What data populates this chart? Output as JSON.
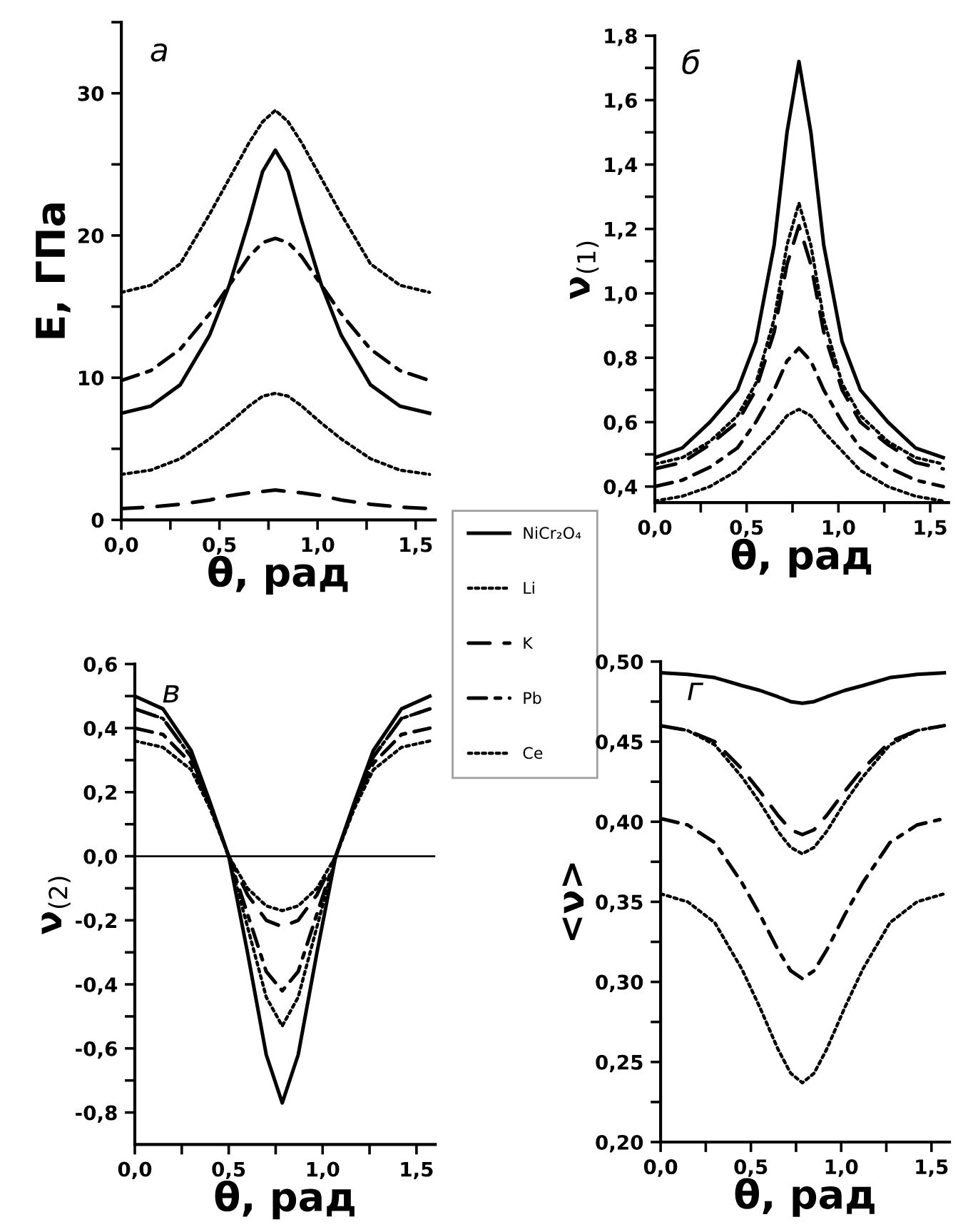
{
  "chart_data": [
    {
      "type": "line",
      "annotations": [
        "а"
      ],
      "xlabel": "θ, рад",
      "ylabel": "E, ГПа",
      "legend": "right",
      "x": [
        0,
        0.15,
        0.3,
        0.45,
        0.55,
        0.65,
        0.72,
        0.785,
        0.85,
        0.92,
        1.02,
        1.12,
        1.27,
        1.42,
        1.571
      ],
      "xlim": [
        0,
        1.6
      ],
      "xticks": [
        {
          "value": 0,
          "label": "0,0"
        },
        {
          "value": 0.25,
          "label": null
        },
        {
          "value": 0.5,
          "label": "0,5"
        },
        {
          "value": 0.75,
          "label": null
        },
        {
          "value": 1.0,
          "label": "1,0"
        },
        {
          "value": 1.25,
          "label": null
        },
        {
          "value": 1.5,
          "label": "1,5"
        }
      ],
      "ylim": [
        0,
        35
      ],
      "yticks": [
        0,
        {
          "value": 5,
          "label": null
        },
        10,
        {
          "value": 15,
          "label": null
        },
        20,
        {
          "value": 25,
          "label": null
        },
        30,
        {
          "value": 35,
          "label": null
        }
      ],
      "series": [
        {
          "name": "NiCr₂O₄",
          "color": "#000000",
          "line_style": "solid",
          "values": [
            7.5,
            8,
            9.5,
            13,
            16.5,
            21,
            24.5,
            26,
            24.5,
            21,
            16.5,
            13,
            9.5,
            8,
            7.5
          ]
        },
        {
          "name": "Li",
          "color": "#000000",
          "line_style": "dotted",
          "values": [
            3.2,
            3.5,
            4.3,
            5.7,
            6.8,
            8,
            8.7,
            8.9,
            8.7,
            8,
            6.8,
            5.7,
            4.3,
            3.5,
            3.2
          ]
        },
        {
          "name": "K",
          "color": "#000000",
          "line_style": "dashed",
          "values": [
            0.8,
            0.9,
            1.1,
            1.4,
            1.7,
            1.9,
            2.0,
            2.1,
            2.0,
            1.9,
            1.7,
            1.4,
            1.1,
            0.9,
            0.8
          ]
        },
        {
          "name": "Pb",
          "color": "#000000",
          "line_style": "dashdot",
          "values": [
            9.8,
            10.5,
            12,
            14.5,
            16.5,
            18.5,
            19.5,
            19.8,
            19.5,
            18.5,
            16.5,
            14.5,
            12,
            10.5,
            9.8
          ]
        },
        {
          "name": "Ce",
          "color": "#000000",
          "line_style": "dotted",
          "values": [
            16,
            16.5,
            18,
            21.5,
            24,
            26.5,
            28,
            28.8,
            28,
            26.5,
            24,
            21.5,
            18,
            16.5,
            16
          ]
        }
      ]
    },
    {
      "type": "line",
      "annotations": [
        "б"
      ],
      "xlabel": "θ, рад",
      "ylabel": "ν$_{(1)}$",
      "x": [
        0,
        0.15,
        0.3,
        0.45,
        0.55,
        0.65,
        0.72,
        0.785,
        0.85,
        0.92,
        1.02,
        1.12,
        1.27,
        1.42,
        1.571
      ],
      "xlim": [
        0,
        1.6
      ],
      "xticks": [
        {
          "value": 0,
          "label": "0,0"
        },
        {
          "value": 0.25,
          "label": null
        },
        {
          "value": 0.5,
          "label": "0,5"
        },
        {
          "value": 0.75,
          "label": null
        },
        {
          "value": 1.0,
          "label": "1,0"
        },
        {
          "value": 1.25,
          "label": null
        },
        {
          "value": 1.5,
          "label": "1,5"
        }
      ],
      "ylim": [
        0.35,
        1.8
      ],
      "yticks": [
        {
          "value": 0.4,
          "label": "0,4"
        },
        {
          "value": 0.5,
          "label": null
        },
        {
          "value": 0.6,
          "label": "0,6"
        },
        {
          "value": 0.7,
          "label": null
        },
        {
          "value": 0.8,
          "label": "0,8"
        },
        {
          "value": 0.9,
          "label": null
        },
        {
          "value": 1.0,
          "label": "1,0"
        },
        {
          "value": 1.1,
          "label": null
        },
        {
          "value": 1.2,
          "label": "1,2"
        },
        {
          "value": 1.3,
          "label": null
        },
        {
          "value": 1.4,
          "label": "1,4"
        },
        {
          "value": 1.5,
          "label": null
        },
        {
          "value": 1.6,
          "label": "1,6"
        },
        {
          "value": 1.7,
          "label": null
        },
        {
          "value": 1.8,
          "label": "1,8"
        }
      ],
      "series": [
        {
          "color": "#000000",
          "line_style": "solid",
          "values": [
            0.49,
            0.52,
            0.6,
            0.7,
            0.85,
            1.15,
            1.5,
            1.72,
            1.5,
            1.15,
            0.85,
            0.7,
            0.6,
            0.52,
            0.49
          ]
        },
        {
          "color": "#000000",
          "line_style": "dotted",
          "values": [
            0.47,
            0.49,
            0.54,
            0.62,
            0.72,
            0.92,
            1.15,
            1.28,
            1.15,
            0.92,
            0.72,
            0.62,
            0.54,
            0.49,
            0.47
          ]
        },
        {
          "color": "#000000",
          "line_style": "dashed",
          "values": [
            0.455,
            0.475,
            0.53,
            0.6,
            0.7,
            0.88,
            1.09,
            1.21,
            1.09,
            0.88,
            0.7,
            0.6,
            0.53,
            0.475,
            0.455
          ]
        },
        {
          "color": "#000000",
          "line_style": "dashdot",
          "values": [
            0.4,
            0.42,
            0.46,
            0.52,
            0.6,
            0.7,
            0.79,
            0.83,
            0.79,
            0.7,
            0.6,
            0.52,
            0.46,
            0.42,
            0.4
          ]
        },
        {
          "color": "#000000",
          "line_style": "dotted",
          "values": [
            0.355,
            0.37,
            0.4,
            0.45,
            0.51,
            0.57,
            0.62,
            0.64,
            0.62,
            0.57,
            0.51,
            0.45,
            0.4,
            0.37,
            0.355
          ]
        }
      ]
    },
    {
      "type": "line",
      "annotations": [
        "в"
      ],
      "xlabel": "θ, рад",
      "ylabel": "ν$_{(2)}$",
      "x": [
        0,
        0.15,
        0.3,
        0.4,
        0.5,
        0.6,
        0.7,
        0.785,
        0.87,
        0.97,
        1.07,
        1.17,
        1.27,
        1.42,
        1.571
      ],
      "xlim": [
        0,
        1.6
      ],
      "xticks": [
        {
          "value": 0,
          "label": "0,0"
        },
        {
          "value": 0.25,
          "label": null
        },
        {
          "value": 0.5,
          "label": "0,5"
        },
        {
          "value": 0.75,
          "label": null
        },
        {
          "value": 1.0,
          "label": "1,0"
        },
        {
          "value": 1.25,
          "label": null
        },
        {
          "value": 1.5,
          "label": "1,5"
        }
      ],
      "ylim": [
        -0.9,
        0.6
      ],
      "yticks": [
        {
          "value": -0.8,
          "label": "-0,8"
        },
        {
          "value": -0.7,
          "label": null
        },
        {
          "value": -0.6,
          "label": "-0,6"
        },
        {
          "value": -0.5,
          "label": null
        },
        {
          "value": -0.4,
          "label": "-0,4"
        },
        {
          "value": -0.3,
          "label": null
        },
        {
          "value": -0.2,
          "label": "-0,2"
        },
        {
          "value": -0.1,
          "label": null
        },
        {
          "value": 0,
          "label": "0,0"
        },
        {
          "value": 0.1,
          "label": null
        },
        {
          "value": 0.2,
          "label": "0,2"
        },
        {
          "value": 0.3,
          "label": null
        },
        {
          "value": 0.4,
          "label": "0,4"
        },
        {
          "value": 0.5,
          "label": null
        },
        {
          "value": 0.6,
          "label": "0,6"
        }
      ],
      "ref_lines": [
        {
          "axis": "y",
          "value": 0,
          "color": "#000000",
          "line_style": "solid"
        }
      ],
      "series": [
        {
          "color": "#000000",
          "line_style": "solid",
          "values": [
            0.5,
            0.46,
            0.33,
            0.17,
            0.0,
            -0.3,
            -0.62,
            -0.77,
            -0.62,
            -0.3,
            0.0,
            0.17,
            0.33,
            0.46,
            0.5
          ]
        },
        {
          "color": "#000000",
          "line_style": "dotted",
          "values": [
            0.46,
            0.43,
            0.31,
            0.16,
            0.0,
            -0.22,
            -0.44,
            -0.53,
            -0.44,
            -0.22,
            0.0,
            0.16,
            0.31,
            0.43,
            0.46
          ]
        },
        {
          "color": "#000000",
          "line_style": "dashed",
          "values": [
            0.46,
            0.43,
            0.31,
            0.16,
            0.0,
            -0.12,
            -0.2,
            -0.22,
            -0.2,
            -0.12,
            0.0,
            0.16,
            0.31,
            0.43,
            0.46
          ]
        },
        {
          "color": "#000000",
          "line_style": "dashdot",
          "values": [
            0.4,
            0.38,
            0.29,
            0.16,
            0.0,
            -0.18,
            -0.36,
            -0.42,
            -0.36,
            -0.18,
            0.0,
            0.16,
            0.29,
            0.38,
            0.4
          ]
        },
        {
          "color": "#000000",
          "line_style": "dotted",
          "values": [
            0.36,
            0.34,
            0.27,
            0.15,
            0.0,
            -0.1,
            -0.155,
            -0.17,
            -0.155,
            -0.1,
            0.0,
            0.15,
            0.27,
            0.34,
            0.36
          ]
        }
      ]
    },
    {
      "type": "line",
      "annotations": [
        "г"
      ],
      "xlabel": "θ, рад",
      "ylabel": "<ν>",
      "x": [
        0,
        0.15,
        0.3,
        0.45,
        0.55,
        0.65,
        0.72,
        0.785,
        0.85,
        0.92,
        1.02,
        1.12,
        1.27,
        1.42,
        1.571
      ],
      "xlim": [
        0,
        1.6
      ],
      "xticks": [
        {
          "value": 0,
          "label": "0,0"
        },
        {
          "value": 0.25,
          "label": null
        },
        {
          "value": 0.5,
          "label": "0,5"
        },
        {
          "value": 0.75,
          "label": null
        },
        {
          "value": 1.0,
          "label": "1,0"
        },
        {
          "value": 1.25,
          "label": null
        },
        {
          "value": 1.5,
          "label": "1,5"
        }
      ],
      "ylim": [
        0.2,
        0.5
      ],
      "yticks": [
        {
          "value": 0.2,
          "label": "0,20"
        },
        {
          "value": 0.225,
          "label": null
        },
        {
          "value": 0.25,
          "label": "0,25"
        },
        {
          "value": 0.275,
          "label": null
        },
        {
          "value": 0.3,
          "label": "0,30"
        },
        {
          "value": 0.325,
          "label": null
        },
        {
          "value": 0.35,
          "label": "0,35"
        },
        {
          "value": 0.375,
          "label": null
        },
        {
          "value": 0.4,
          "label": "0,40"
        },
        {
          "value": 0.425,
          "label": null
        },
        {
          "value": 0.45,
          "label": "0,45"
        },
        {
          "value": 0.475,
          "label": null
        },
        {
          "value": 0.5,
          "label": "0,50"
        }
      ],
      "series": [
        {
          "color": "#000000",
          "line_style": "solid",
          "values": [
            0.493,
            0.492,
            0.49,
            0.485,
            0.482,
            0.478,
            0.475,
            0.474,
            0.475,
            0.478,
            0.482,
            0.485,
            0.49,
            0.492,
            0.493
          ]
        },
        {
          "color": "#000000",
          "line_style": "dotted",
          "values": [
            0.46,
            0.457,
            0.448,
            0.428,
            0.412,
            0.394,
            0.384,
            0.38,
            0.384,
            0.394,
            0.412,
            0.428,
            0.448,
            0.457,
            0.46
          ]
        },
        {
          "color": "#000000",
          "line_style": "dashed",
          "values": [
            0.46,
            0.457,
            0.45,
            0.433,
            0.419,
            0.404,
            0.395,
            0.392,
            0.395,
            0.404,
            0.419,
            0.433,
            0.45,
            0.457,
            0.46
          ]
        },
        {
          "color": "#000000",
          "line_style": "dashdot",
          "values": [
            0.402,
            0.398,
            0.387,
            0.362,
            0.342,
            0.32,
            0.307,
            0.302,
            0.307,
            0.32,
            0.342,
            0.362,
            0.387,
            0.398,
            0.402
          ]
        },
        {
          "color": "#000000",
          "line_style": "dotted",
          "values": [
            0.355,
            0.35,
            0.337,
            0.308,
            0.284,
            0.258,
            0.243,
            0.237,
            0.243,
            0.258,
            0.284,
            0.308,
            0.337,
            0.35,
            0.355
          ]
        }
      ]
    }
  ]
}
